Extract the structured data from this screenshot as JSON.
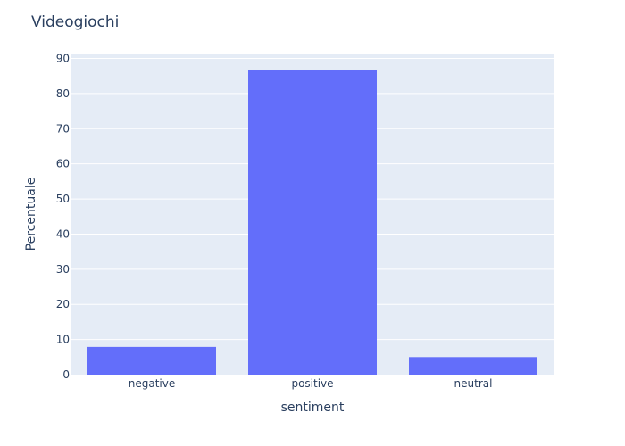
{
  "chart_data": {
    "type": "bar",
    "title": "Videogiochi",
    "xlabel": "sentiment",
    "ylabel": "Percentuale",
    "categories": [
      "negative",
      "positive",
      "neutral"
    ],
    "values": [
      7.9,
      86.8,
      5.0
    ],
    "ylim": [
      0,
      91.4
    ],
    "yticks": [
      0,
      10,
      20,
      30,
      40,
      50,
      60,
      70,
      80,
      90
    ],
    "grid": true,
    "bar_color": "#636efa",
    "plot_bgcolor": "#e5ecf6"
  }
}
